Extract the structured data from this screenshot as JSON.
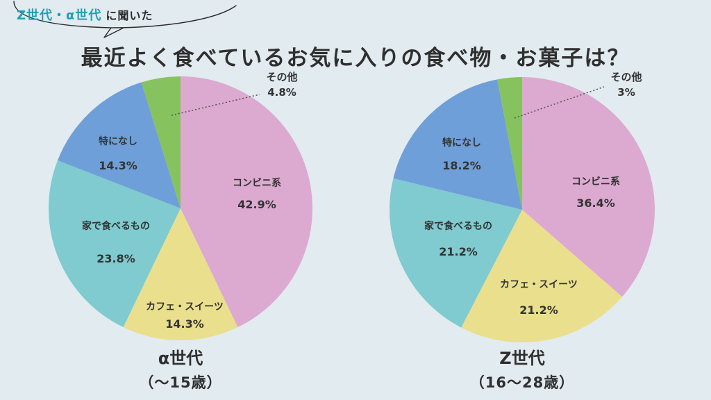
{
  "header": {
    "kicker_highlight": "Z世代・α世代",
    "kicker_normal": "に聞いた",
    "title": "最近よく食べているお気に入りの食べ物・お菓子は？"
  },
  "colors": {
    "background": "#e2ebef",
    "kicker_accent": "#1da1b3",
    "slice_convenience": "#dcaad0",
    "slice_cafe": "#e9df8d",
    "slice_home": "#7fcbd0",
    "slice_none": "#6f9fd8",
    "slice_other": "#86c35f"
  },
  "chart_data": [
    {
      "type": "pie",
      "group": "α世代",
      "group_range": "（〜15歳）",
      "categories": [
        "コンビニ系",
        "カフェ・スイーツ",
        "家で食べるもの",
        "特になし",
        "その他"
      ],
      "values": [
        42.9,
        14.3,
        23.8,
        14.3,
        4.8
      ],
      "labels": [
        "42.9%",
        "14.3%",
        "23.8%",
        "14.3%",
        "4.8%"
      ],
      "colors": [
        "#dcaad0",
        "#e9df8d",
        "#7fcbd0",
        "#6f9fd8",
        "#86c35f"
      ]
    },
    {
      "type": "pie",
      "group": "Z世代",
      "group_range": "（16〜28歳）",
      "categories": [
        "コンビニ系",
        "カフェ・スイーツ",
        "家で食べるもの",
        "特になし",
        "その他"
      ],
      "values": [
        36.4,
        21.2,
        21.2,
        18.2,
        3.0
      ],
      "labels": [
        "36.4%",
        "21.2%",
        "21.2%",
        "18.2%",
        "3%"
      ],
      "colors": [
        "#dcaad0",
        "#e9df8d",
        "#7fcbd0",
        "#6f9fd8",
        "#86c35f"
      ]
    }
  ]
}
